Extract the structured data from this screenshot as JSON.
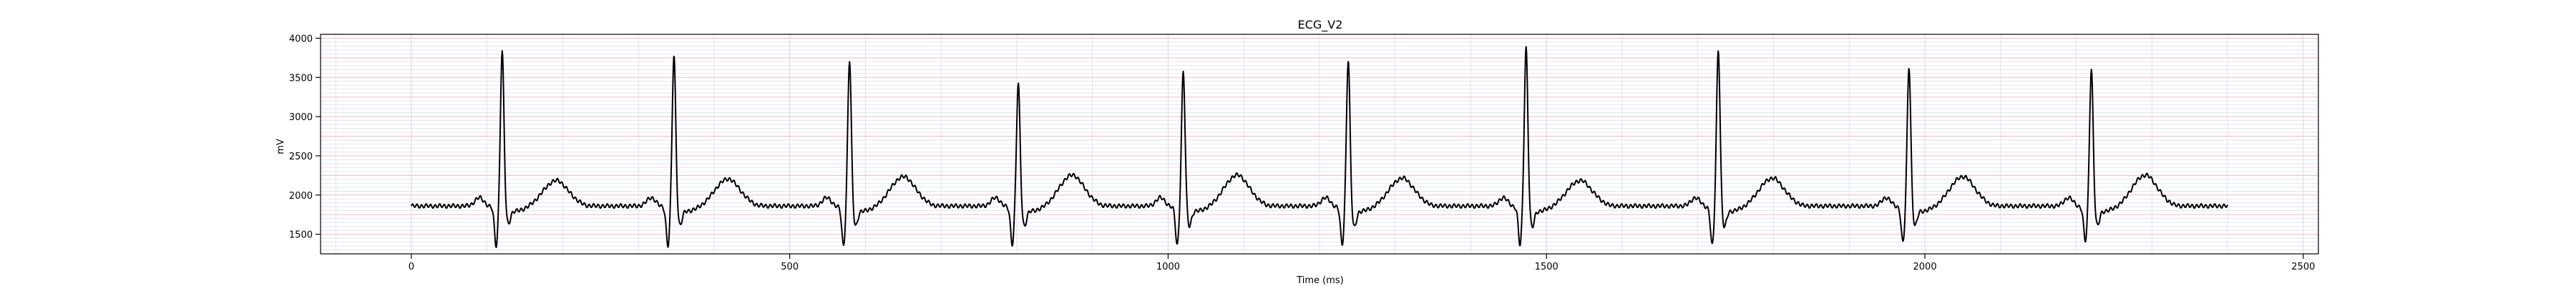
{
  "chart_data": {
    "type": "line",
    "title": "ECG_V2",
    "xlabel": "Time (ms)",
    "ylabel": "mV",
    "xlim": [
      -120,
      2520
    ],
    "ylim": [
      1250,
      4050
    ],
    "x_ticks": [
      0,
      500,
      1000,
      1500,
      2000,
      2500
    ],
    "x_tick_labels": [
      "0",
      "500",
      "1000",
      "1500",
      "2000",
      "2500"
    ],
    "y_ticks": [
      1500,
      2000,
      2500,
      3000,
      3500,
      4000
    ],
    "y_tick_labels": [
      "1500",
      "2000",
      "2500",
      "3000",
      "3500",
      "4000"
    ],
    "grid": true,
    "grid_colors": {
      "major": "#f4b3b3",
      "minor": "#b8c4ea",
      "vertical": "#d9d9d9"
    },
    "line_color": "#000000",
    "x_range": [
      0,
      2400
    ],
    "baseline": 1860,
    "beats": [
      {
        "r_time": 120,
        "r_peak": 3880,
        "q_min": 1380,
        "s_min": 1760,
        "t_peak": 2050
      },
      {
        "r_time": 347,
        "r_peak": 3830,
        "q_min": 1380,
        "s_min": 1740,
        "t_peak": 2070
      },
      {
        "r_time": 579,
        "r_peak": 3770,
        "q_min": 1380,
        "s_min": 1730,
        "t_peak": 2100
      },
      {
        "r_time": 802,
        "r_peak": 3470,
        "q_min": 1400,
        "s_min": 1730,
        "t_peak": 2120
      },
      {
        "r_time": 1020,
        "r_peak": 3620,
        "q_min": 1390,
        "s_min": 1730,
        "t_peak": 2120
      },
      {
        "r_time": 1238,
        "r_peak": 3780,
        "q_min": 1390,
        "s_min": 1710,
        "t_peak": 2080
      },
      {
        "r_time": 1473,
        "r_peak": 3930,
        "q_min": 1390,
        "s_min": 1710,
        "t_peak": 2050
      },
      {
        "r_time": 1727,
        "r_peak": 3910,
        "q_min": 1380,
        "s_min": 1710,
        "t_peak": 2080
      },
      {
        "r_time": 1979,
        "r_peak": 3690,
        "q_min": 1420,
        "s_min": 1730,
        "t_peak": 2100
      },
      {
        "r_time": 2220,
        "r_peak": 3660,
        "q_min": 1440,
        "s_min": 1730,
        "t_peak": 2120
      }
    ]
  }
}
